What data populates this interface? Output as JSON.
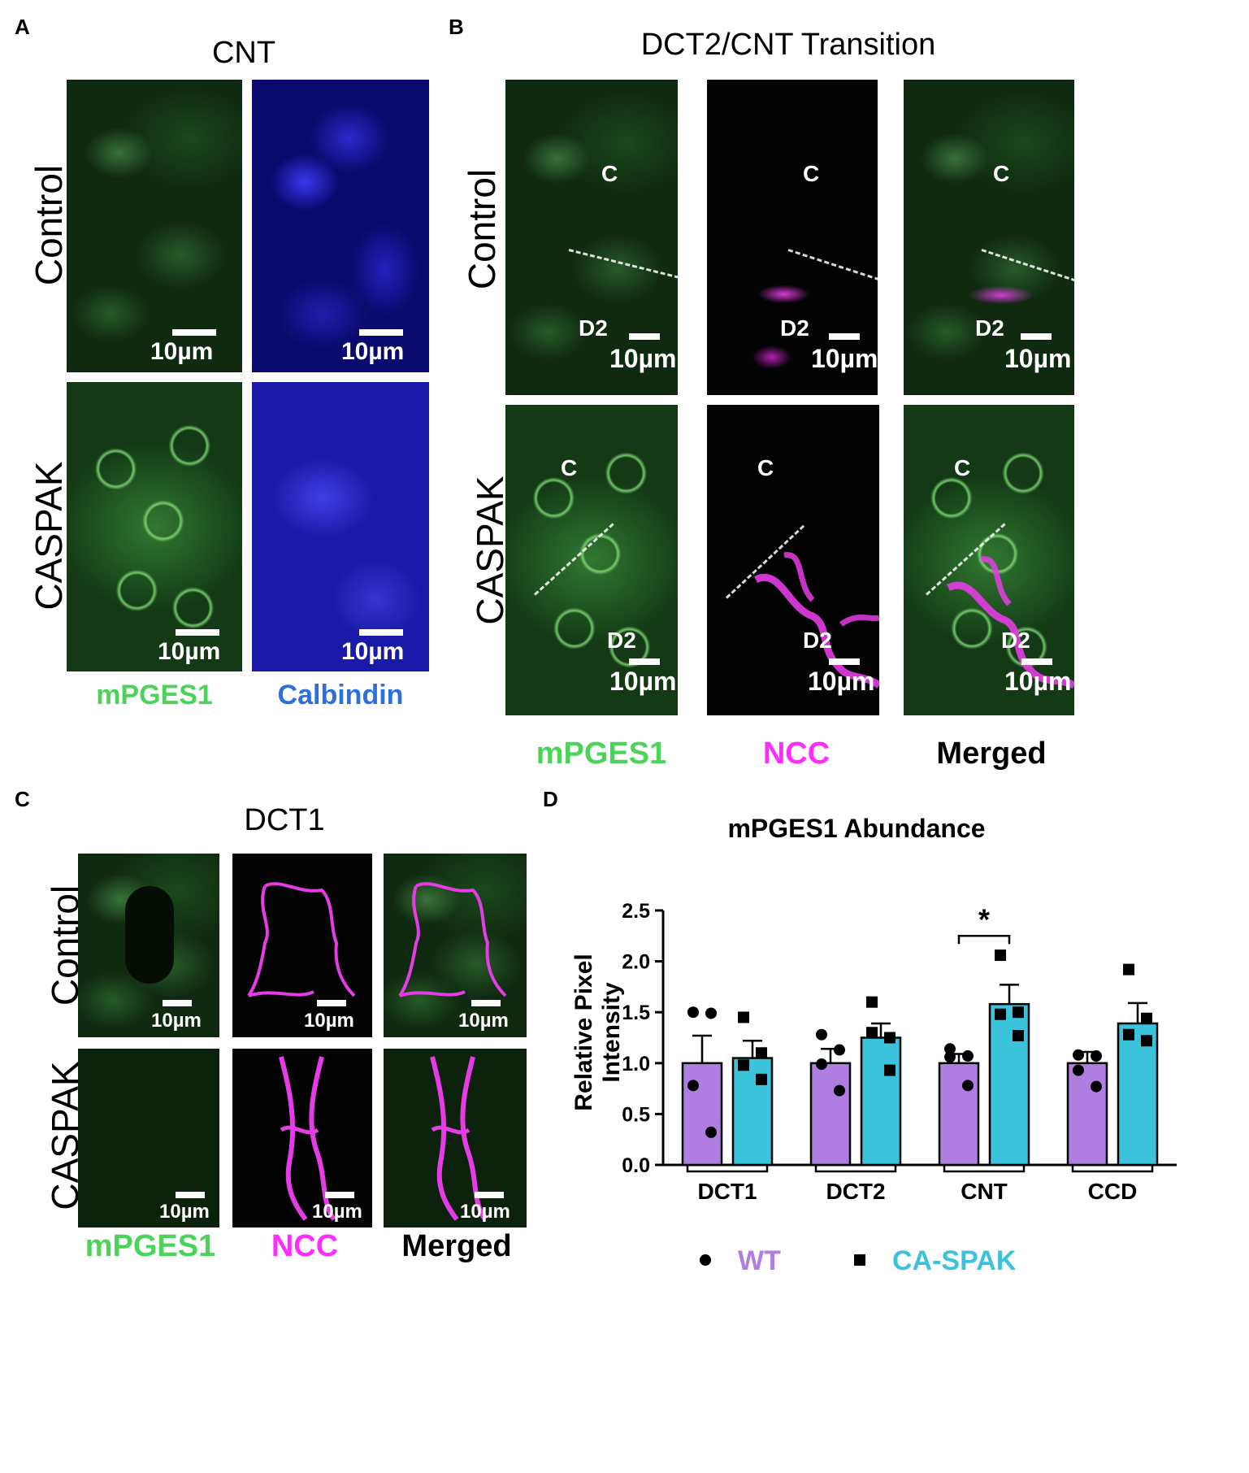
{
  "panels": {
    "A": {
      "label": "A",
      "title": "CNT",
      "rows": [
        "Control",
        "CASPAK"
      ],
      "channels": [
        "mPGES1",
        "Calbindin"
      ],
      "scale": "10µm"
    },
    "B": {
      "label": "B",
      "title": "DCT2/CNT Transition",
      "rows": [
        "Control",
        "CASPAK"
      ],
      "channels": [
        "mPGES1",
        "NCC",
        "Merged"
      ],
      "scale": "10µm",
      "segment_c": "C",
      "segment_d2": "D2"
    },
    "C": {
      "label": "C",
      "title": "DCT1",
      "rows": [
        "Control",
        "CASPAK"
      ],
      "channels": [
        "mPGES1",
        "NCC",
        "Merged"
      ],
      "scale": "10µm"
    },
    "D": {
      "label": "D"
    }
  },
  "colors": {
    "green_label": "#4cd35a",
    "blue_label": "#2b6fe0",
    "magenta_label": "#ff2bff",
    "wt_bar": "#b07de0",
    "caspak_bar": "#3cc3dc"
  },
  "chart_data": {
    "type": "bar",
    "title": "mPGES1 Abundance",
    "ylabel": "Relative Pixel Intensity",
    "xlabel": "",
    "ylim": [
      0,
      2.5
    ],
    "yticks": [
      "0.0",
      "0.5",
      "1.0",
      "1.5",
      "2.0",
      "2.5"
    ],
    "categories": [
      "DCT1",
      "DCT2",
      "CNT",
      "CCD"
    ],
    "series": [
      {
        "name": "WT",
        "marker": "circle",
        "values": [
          1.0,
          1.0,
          1.0,
          1.0
        ],
        "sem": [
          0.27,
          0.14,
          0.09,
          0.11
        ],
        "points": [
          [
            1.5,
            1.49,
            0.78,
            0.32
          ],
          [
            1.28,
            1.13,
            0.99,
            0.73
          ],
          [
            1.14,
            1.07,
            1.06,
            0.78
          ],
          [
            1.08,
            1.07,
            0.93,
            0.77
          ]
        ]
      },
      {
        "name": "CA-SPAK",
        "marker": "square",
        "values": [
          1.05,
          1.25,
          1.58,
          1.39
        ],
        "sem": [
          0.17,
          0.14,
          0.19,
          0.2
        ],
        "points": [
          [
            1.45,
            1.1,
            0.98,
            0.84
          ],
          [
            1.6,
            1.25,
            1.3,
            0.93
          ],
          [
            2.06,
            1.5,
            1.48,
            1.27
          ],
          [
            1.92,
            1.44,
            1.28,
            1.22
          ]
        ]
      }
    ],
    "significance": {
      "categories": [
        "CNT"
      ],
      "label": "*"
    },
    "legend": [
      "WT",
      "CA-SPAK"
    ],
    "legend_position": "bottom"
  }
}
